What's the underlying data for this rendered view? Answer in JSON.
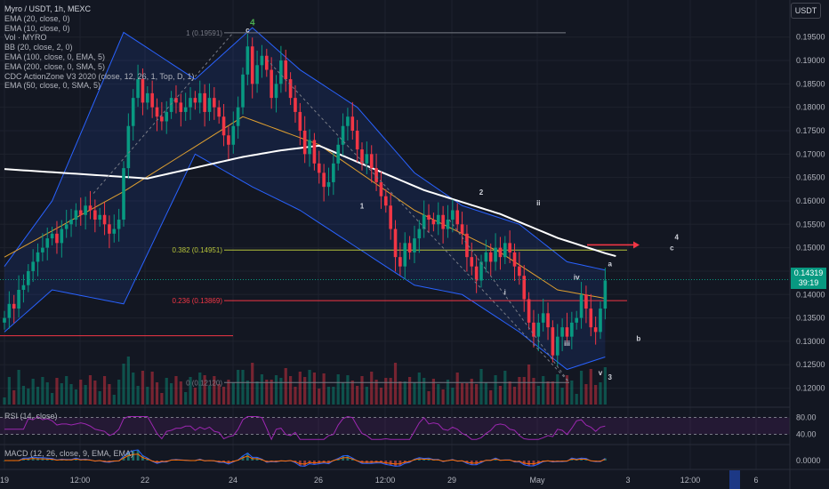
{
  "header": {
    "symbol_title": "Myro / USDT, 1h, MEXC",
    "currency_button": "USDT"
  },
  "legend": {
    "items": [
      "EMA (20, close, 0)",
      "EMA (10, close, 0)",
      "Vol · MYRO",
      "BB (20, close, 2, 0)",
      "EMA (100, close, 0, EMA, 5)",
      "EMA (200, close, 0, SMA, 5)",
      "CDC ActionZone V3 2020 (close, 12, 26, 1, Top, D, 1)",
      "EMA (50, close, 0, SMA, 5)"
    ]
  },
  "rsi_panel": {
    "label": "RSI (14, close)",
    "upper": "80.00",
    "lower": "40.00"
  },
  "macd_panel": {
    "label": "MACD (12, 26, close, 9, EMA, EMA)",
    "zero": "0.0000"
  },
  "price_badge": {
    "price": "0.14319",
    "countdown": "39:19"
  },
  "colors": {
    "background": "#131722",
    "up": "#089981",
    "down": "#f23645",
    "ema200": "#ffffff",
    "bollinger": "#2962ff",
    "rsi": "#9c27b0",
    "fib_0382": "#b5c23a",
    "fib_0236": "#f23645"
  },
  "chart_data": {
    "type": "candlestick",
    "timeframe": "1h",
    "x_tick_labels": [
      "19",
      "12:00",
      "22",
      "24",
      "26",
      "12:00",
      "29",
      "May",
      "3",
      "12:00",
      "6"
    ],
    "y_axis": {
      "range": [
        0.1165,
        0.1995
      ],
      "tick_labels": [
        "0.19500",
        "0.19000",
        "0.18500",
        "0.18000",
        "0.17500",
        "0.17000",
        "0.16500",
        "0.16000",
        "0.15500",
        "0.15000",
        "0.14500",
        "0.14000",
        "0.13500",
        "0.13000",
        "0.12500",
        "0.12000"
      ]
    },
    "close_series": [
      0.135,
      0.138,
      0.137,
      0.141,
      0.142,
      0.145,
      0.147,
      0.149,
      0.15,
      0.152,
      0.153,
      0.151,
      0.154,
      0.155,
      0.156,
      0.158,
      0.157,
      0.159,
      0.158,
      0.156,
      0.157,
      0.155,
      0.153,
      0.154,
      0.156,
      0.167,
      0.176,
      0.182,
      0.186,
      0.181,
      0.183,
      0.18,
      0.178,
      0.177,
      0.179,
      0.182,
      0.181,
      0.179,
      0.18,
      0.182,
      0.181,
      0.183,
      0.179,
      0.182,
      0.18,
      0.178,
      0.174,
      0.172,
      0.176,
      0.18,
      0.187,
      0.193,
      0.185,
      0.189,
      0.191,
      0.188,
      0.182,
      0.185,
      0.19,
      0.186,
      0.182,
      0.179,
      0.175,
      0.17,
      0.173,
      0.168,
      0.166,
      0.163,
      0.164,
      0.168,
      0.172,
      0.176,
      0.178,
      0.175,
      0.171,
      0.168,
      0.17,
      0.167,
      0.164,
      0.161,
      0.159,
      0.154,
      0.148,
      0.146,
      0.151,
      0.149,
      0.152,
      0.154,
      0.157,
      0.156,
      0.155,
      0.157,
      0.154,
      0.156,
      0.158,
      0.155,
      0.153,
      0.148,
      0.146,
      0.143,
      0.147,
      0.149,
      0.147,
      0.15,
      0.148,
      0.151,
      0.149,
      0.146,
      0.144,
      0.139,
      0.134,
      0.131,
      0.134,
      0.136,
      0.133,
      0.127,
      0.131,
      0.133,
      0.131,
      0.134,
      0.135,
      0.14,
      0.137,
      0.133,
      0.132,
      0.137,
      0.143
    ],
    "series": [
      {
        "name": "EMA (200, close, 0, SMA, 5)",
        "anchors": [
          [
            0,
            0.1668
          ],
          [
            30,
            0.1648
          ],
          [
            50,
            0.1694
          ],
          [
            58,
            0.1708
          ],
          [
            66,
            0.1718
          ],
          [
            88,
            0.1623
          ],
          [
            104,
            0.1572
          ],
          [
            116,
            0.1521
          ],
          [
            127,
            0.1485
          ]
        ]
      },
      {
        "name": "BB (20, close, 2, 0)",
        "upper": [
          [
            0,
            0.146
          ],
          [
            10,
            0.16
          ],
          [
            25,
            0.196
          ],
          [
            40,
            0.186
          ],
          [
            52,
            0.197
          ],
          [
            62,
            0.188
          ],
          [
            74,
            0.18
          ],
          [
            86,
            0.166
          ],
          [
            96,
            0.159
          ],
          [
            108,
            0.155
          ],
          [
            118,
            0.147
          ],
          [
            127,
            0.145
          ]
        ],
        "lower": [
          [
            0,
            0.132
          ],
          [
            10,
            0.141
          ],
          [
            25,
            0.138
          ],
          [
            40,
            0.17
          ],
          [
            52,
            0.163
          ],
          [
            62,
            0.158
          ],
          [
            74,
            0.15
          ],
          [
            86,
            0.142
          ],
          [
            96,
            0.14
          ],
          [
            108,
            0.132
          ],
          [
            118,
            0.124
          ],
          [
            127,
            0.127
          ]
        ]
      },
      {
        "name": "EMA (50, close, 0, SMA, 5)",
        "anchors": [
          [
            0,
            0.148
          ],
          [
            25,
            0.162
          ],
          [
            50,
            0.178
          ],
          [
            66,
            0.172
          ],
          [
            86,
            0.158
          ],
          [
            104,
            0.149
          ],
          [
            116,
            0.141
          ],
          [
            127,
            0.139
          ]
        ]
      }
    ],
    "fib_levels": [
      {
        "label": "1 (0.19591)",
        "value": 0.19591
      },
      {
        "label": "0.382 (0.14951)",
        "value": 0.14951
      },
      {
        "label": "0.236 (0.13869)",
        "value": 0.13869
      },
      {
        "label": "0 (0.12120)",
        "value": 0.1212
      }
    ],
    "horizontal_line": 0.1312,
    "wave_labels": [
      {
        "text": "4",
        "x": 52,
        "y": 0.1975
      },
      {
        "text": "c",
        "x": 51,
        "y": 0.196
      },
      {
        "text": "1",
        "x": 75,
        "y": 0.1584
      },
      {
        "text": "2",
        "x": 100,
        "y": 0.1613
      },
      {
        "text": "ii",
        "x": 112,
        "y": 0.159
      },
      {
        "text": "i",
        "x": 105,
        "y": 0.14
      },
      {
        "text": "a",
        "x": 127,
        "y": 0.146
      },
      {
        "text": "iv",
        "x": 120,
        "y": 0.1432
      },
      {
        "text": "iii",
        "x": 118,
        "y": 0.129
      },
      {
        "text": "b",
        "x": 133,
        "y": 0.1301
      },
      {
        "text": "v",
        "x": 125,
        "y": 0.1228
      },
      {
        "text": "3",
        "x": 127,
        "y": 0.1218
      },
      {
        "text": "4",
        "x": 141,
        "y": 0.1517
      },
      {
        "text": "c",
        "x": 140,
        "y": 0.1495
      }
    ],
    "current_price": 0.14319,
    "rsi": {
      "ticks": [
        "80.00",
        "40.00"
      ],
      "range": [
        20,
        100
      ]
    },
    "macd": {
      "ticks": [
        "0.0000"
      ]
    }
  }
}
